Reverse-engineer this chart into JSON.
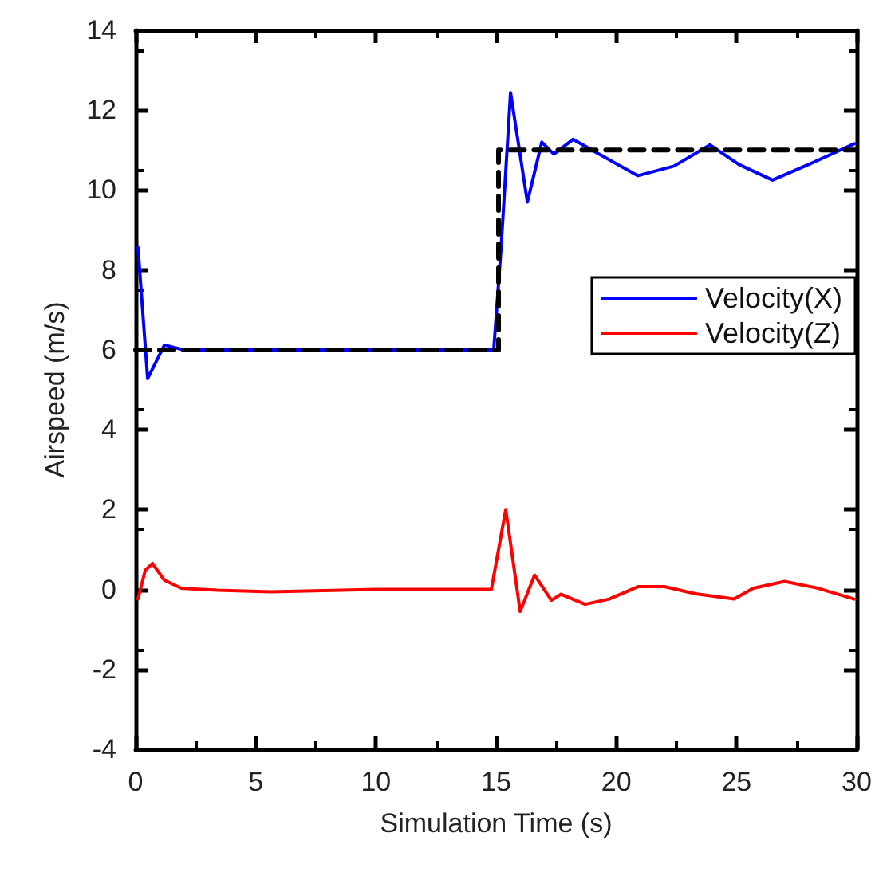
{
  "chart_data": {
    "type": "line",
    "xlabel": "Simulation Time (s)",
    "ylabel": "Airspeed (m/s)",
    "xlim": [
      0,
      30
    ],
    "xticks": [
      0,
      5,
      10,
      15,
      20,
      25,
      30
    ],
    "ylim": [
      -4,
      14
    ],
    "yticks": [
      -4,
      -2,
      0,
      2,
      4,
      6,
      8,
      10,
      12,
      14
    ],
    "grid": false,
    "legend": "top right",
    "marker": "none",
    "series": [
      {
        "name": "Velocity(X)",
        "color": "#0000ff",
        "line_style": "solid",
        "x": [
          0.1,
          0.5,
          1.2,
          2,
          5,
          10,
          14.9,
          15.2,
          15.6,
          16.3,
          16.9,
          17.4,
          18.2,
          19.1,
          20.9,
          22.4,
          23.9,
          25.1,
          26.5,
          28,
          29.9
        ],
        "values": [
          8.56,
          5.28,
          6.12,
          6.0,
          6.0,
          6.0,
          6.0,
          8.5,
          12.44,
          9.7,
          11.2,
          10.9,
          11.27,
          10.96,
          10.36,
          10.6,
          11.13,
          10.64,
          10.25,
          10.64,
          11.16
        ]
      },
      {
        "name": "Velocity(Z)",
        "color": "#ff0000",
        "line_style": "solid",
        "x": [
          0.1,
          0.4,
          0.7,
          1.2,
          1.9,
          3.4,
          5.6,
          10,
          14.8,
          15.4,
          16.0,
          16.6,
          17.3,
          17.7,
          18.7,
          19.7,
          20.9,
          22.0,
          23.3,
          24.9,
          25.7,
          27.0,
          28.4,
          29.9
        ],
        "values": [
          -0.24,
          0.48,
          0.65,
          0.23,
          0.03,
          -0.02,
          -0.06,
          0.0,
          0.0,
          2.0,
          -0.55,
          0.36,
          -0.27,
          -0.12,
          -0.37,
          -0.24,
          0.07,
          0.07,
          -0.11,
          -0.24,
          0.03,
          0.2,
          0.03,
          -0.24
        ]
      },
      {
        "color": "#000000",
        "line_style": "dashed",
        "x": [
          0,
          15.1,
          15.1,
          30
        ],
        "values": [
          6,
          6,
          11,
          11
        ]
      }
    ]
  }
}
